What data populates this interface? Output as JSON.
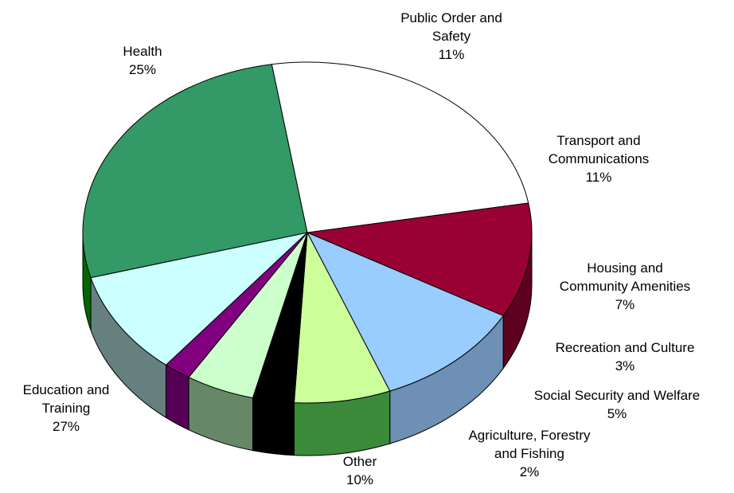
{
  "chart_data": {
    "type": "pie",
    "title": "",
    "three_d": true,
    "legend": "none",
    "slices": [
      {
        "label_lines": [
          "Public Order and",
          "Safety"
        ],
        "pct_label": "11%",
        "value": 11,
        "color": "#990033",
        "side": "#5e0020"
      },
      {
        "label_lines": [
          "Transport and",
          "Communications"
        ],
        "pct_label": "11%",
        "value": 11,
        "color": "#99ccff",
        "side": "#6d90b4"
      },
      {
        "label_lines": [
          "Housing and",
          "Community Amenities"
        ],
        "pct_label": "7%",
        "value": 7,
        "color": "#ccff99",
        "side": "#3a8a3a"
      },
      {
        "label_lines": [
          "Recreation and Culture"
        ],
        "pct_label": "3%",
        "value": 3,
        "color": "#000000",
        "side": "#000000"
      },
      {
        "label_lines": [
          "Social  Security and Welfare"
        ],
        "pct_label": "5%",
        "value": 5,
        "color": "#ccffcc",
        "side": "#668866"
      },
      {
        "label_lines": [
          "Agriculture, Forestry",
          "and Fishing"
        ],
        "pct_label": "2%",
        "value": 2,
        "color": "#800080",
        "side": "#550055"
      },
      {
        "label_lines": [
          "Other"
        ],
        "pct_label": "10%",
        "value": 10,
        "color": "#ccffff",
        "side": "#668080"
      },
      {
        "label_lines": [
          "Education and",
          "Training"
        ],
        "pct_label": "27%",
        "value": 27,
        "color": "#339966",
        "side": "#006600"
      },
      {
        "label_lines": [
          "Health"
        ],
        "pct_label": "25%",
        "value": 25,
        "color": "#ffffff",
        "side": "#bbbbbb"
      }
    ]
  }
}
